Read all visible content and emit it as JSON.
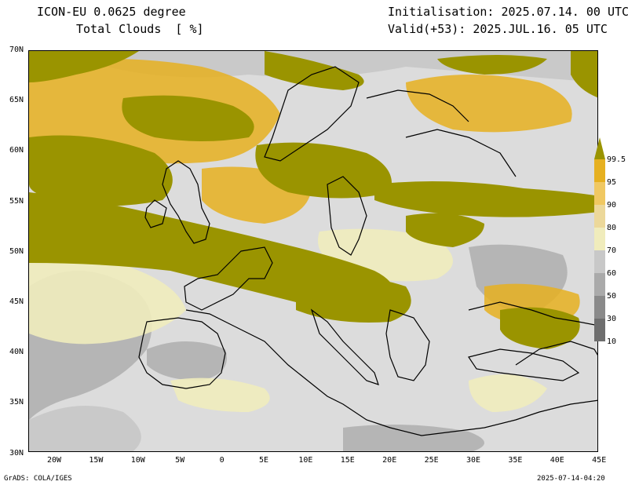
{
  "header": {
    "model_title": "ICON-EU 0.0625 degree",
    "variable_title": "Total Clouds  [ %]",
    "init_text": "Initialisation: 2025.07.14. 00 UTC",
    "valid_text": "Valid(+53): 2025.JUL.16. 05 UTC"
  },
  "map": {
    "projection": "lat-lon",
    "lat_range": [
      30,
      70
    ],
    "lon_range": [
      -23,
      45
    ],
    "lat_ticks": [
      "70N",
      "65N",
      "60N",
      "55N",
      "50N",
      "45N",
      "40N",
      "35N",
      "30N"
    ],
    "lon_ticks": [
      "20W",
      "15W",
      "10W",
      "5W",
      "0",
      "5E",
      "10E",
      "15E",
      "20E",
      "25E",
      "30E",
      "35E",
      "40E",
      "45E"
    ],
    "land_color": "#dcdcdc",
    "coastline_color": "#000000"
  },
  "colorbar": {
    "labels": [
      "99.5",
      "95",
      "90",
      "80",
      "70",
      "60",
      "50",
      "30",
      "10"
    ],
    "colors": [
      "#9a9400",
      "#e6b020",
      "#f0c862",
      "#ecd89a",
      "#f0ecbc",
      "#c8c8c8",
      "#aaaaaa",
      "#8a8a8a",
      "#6e6e6e"
    ]
  },
  "footer": {
    "left": "GrADS: COLA/IGES",
    "right": "2025-07-14-04:20"
  }
}
